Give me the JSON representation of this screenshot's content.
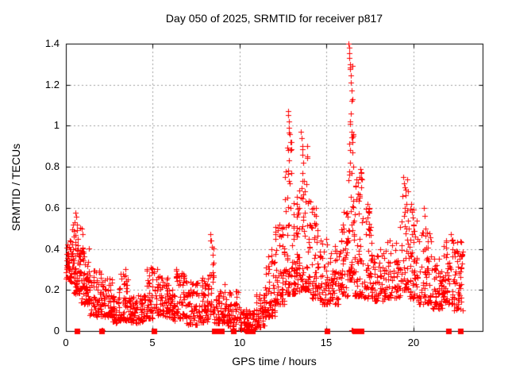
{
  "chart_data": {
    "type": "scatter",
    "title": "Day 050 of 2025, SRMTID for receiver p817",
    "xlabel": "GPS time / hours",
    "ylabel": "SRMTID / TECUs",
    "xlim": [
      0,
      24
    ],
    "ylim": [
      0,
      1.4
    ],
    "xticks": [
      {
        "v": 0,
        "label": "0"
      },
      {
        "v": 5,
        "label": "5"
      },
      {
        "v": 10,
        "label": "10"
      },
      {
        "v": 15,
        "label": "15"
      },
      {
        "v": 20,
        "label": "20"
      }
    ],
    "yticks": [
      {
        "v": 0,
        "label": "0"
      },
      {
        "v": 0.2,
        "label": "0.2"
      },
      {
        "v": 0.4,
        "label": "0.4"
      },
      {
        "v": 0.6,
        "label": "0.6"
      },
      {
        "v": 0.8,
        "label": "0.8"
      },
      {
        "v": 1,
        "label": "1"
      },
      {
        "v": 1.2,
        "label": "1.2"
      },
      {
        "v": 1.4,
        "label": "1.4"
      }
    ],
    "grid": true,
    "legend_position": "none",
    "colors": {
      "marker": "#ff0000",
      "grid": "#a0a0a0",
      "frame": "#000000",
      "background": "#ffffff"
    },
    "marker": {
      "shape": "plus",
      "size": 7
    },
    "zero_marker": {
      "shape": "filled-square",
      "size": 7
    },
    "density_bands": [
      [
        0.0,
        0.35,
        0.24,
        0.46,
        45,
        1.3
      ],
      [
        0.35,
        0.85,
        0.18,
        0.52,
        70,
        1.5
      ],
      [
        0.85,
        1.35,
        0.13,
        0.42,
        60,
        1.5
      ],
      [
        1.35,
        2.05,
        0.07,
        0.3,
        65,
        1.6
      ],
      [
        2.05,
        2.65,
        0.07,
        0.26,
        55,
        1.6
      ],
      [
        2.65,
        3.05,
        0.04,
        0.17,
        40,
        1.5
      ],
      [
        3.05,
        3.6,
        0.05,
        0.28,
        55,
        1.7
      ],
      [
        3.6,
        4.6,
        0.04,
        0.18,
        80,
        1.4
      ],
      [
        4.6,
        5.15,
        0.06,
        0.31,
        50,
        1.8
      ],
      [
        5.15,
        5.9,
        0.07,
        0.28,
        65,
        1.7
      ],
      [
        5.9,
        6.25,
        0.05,
        0.2,
        35,
        1.5
      ],
      [
        6.25,
        6.9,
        0.06,
        0.3,
        55,
        1.8
      ],
      [
        6.9,
        7.6,
        0.03,
        0.24,
        60,
        1.6
      ],
      [
        7.6,
        8.2,
        0.04,
        0.26,
        55,
        1.6
      ],
      [
        8.2,
        8.55,
        0.08,
        0.45,
        30,
        2.0
      ],
      [
        8.55,
        9.3,
        0.04,
        0.26,
        60,
        1.8
      ],
      [
        9.3,
        10.0,
        0.02,
        0.2,
        55,
        1.7
      ],
      [
        10.0,
        10.95,
        0.005,
        0.12,
        65,
        1.5
      ],
      [
        10.95,
        11.45,
        0.02,
        0.18,
        45,
        1.5
      ],
      [
        11.45,
        12.05,
        0.07,
        0.38,
        60,
        1.7
      ],
      [
        12.05,
        12.62,
        0.13,
        0.52,
        60,
        1.6
      ],
      [
        12.62,
        13.12,
        0.18,
        1.05,
        60,
        2.6
      ],
      [
        13.12,
        13.52,
        0.18,
        0.7,
        45,
        2.0
      ],
      [
        13.52,
        14.02,
        0.2,
        0.95,
        55,
        2.4
      ],
      [
        14.02,
        14.55,
        0.16,
        0.62,
        50,
        1.9
      ],
      [
        14.55,
        15.25,
        0.13,
        0.46,
        55,
        1.8
      ],
      [
        15.25,
        15.85,
        0.13,
        0.42,
        50,
        1.7
      ],
      [
        15.85,
        16.22,
        0.17,
        0.6,
        40,
        1.8
      ],
      [
        16.22,
        16.58,
        0.25,
        1.38,
        50,
        2.6
      ],
      [
        16.58,
        17.15,
        0.17,
        0.78,
        60,
        2.1
      ],
      [
        17.15,
        17.65,
        0.16,
        0.6,
        50,
        1.9
      ],
      [
        17.65,
        18.35,
        0.14,
        0.4,
        55,
        1.6
      ],
      [
        18.35,
        19.25,
        0.16,
        0.44,
        60,
        1.6
      ],
      [
        19.25,
        19.75,
        0.2,
        0.74,
        45,
        2.0
      ],
      [
        19.75,
        20.25,
        0.16,
        0.6,
        50,
        1.8
      ],
      [
        20.25,
        21.05,
        0.13,
        0.48,
        65,
        1.8
      ],
      [
        21.05,
        21.75,
        0.11,
        0.36,
        60,
        1.6
      ],
      [
        21.75,
        22.35,
        0.13,
        0.48,
        55,
        1.8
      ],
      [
        22.35,
        22.85,
        0.1,
        0.45,
        50,
        1.7
      ]
    ],
    "peak_points": [
      [
        0.5,
        0.53
      ],
      [
        0.55,
        0.575
      ],
      [
        0.58,
        0.555
      ],
      [
        0.62,
        0.52
      ],
      [
        0.9,
        0.5
      ],
      [
        0.95,
        0.47
      ],
      [
        3.3,
        0.28
      ],
      [
        3.45,
        0.3
      ],
      [
        4.95,
        0.3
      ],
      [
        5.25,
        0.3
      ],
      [
        6.35,
        0.3
      ],
      [
        6.4,
        0.28
      ],
      [
        8.33,
        0.47
      ],
      [
        8.36,
        0.44
      ],
      [
        8.4,
        0.41
      ],
      [
        8.44,
        0.37
      ],
      [
        11.85,
        0.4
      ],
      [
        12.3,
        0.52
      ],
      [
        12.45,
        0.5
      ],
      [
        12.78,
        1.07
      ],
      [
        12.8,
        1.05
      ],
      [
        12.83,
        1.02
      ],
      [
        12.86,
        0.99
      ],
      [
        12.89,
        0.96
      ],
      [
        12.92,
        0.92
      ],
      [
        12.95,
        0.88
      ],
      [
        12.85,
        0.83
      ],
      [
        12.8,
        0.78
      ],
      [
        12.9,
        0.72
      ],
      [
        12.75,
        0.65
      ],
      [
        12.95,
        0.6
      ],
      [
        13.54,
        0.97
      ],
      [
        13.57,
        0.94
      ],
      [
        13.6,
        0.9
      ],
      [
        13.63,
        0.86
      ],
      [
        13.66,
        0.82
      ],
      [
        13.6,
        0.77
      ],
      [
        13.7,
        0.73
      ],
      [
        13.75,
        0.68
      ],
      [
        13.8,
        0.63
      ],
      [
        13.3,
        0.62
      ],
      [
        13.35,
        0.57
      ],
      [
        14.1,
        0.63
      ],
      [
        14.15,
        0.58
      ],
      [
        15.0,
        0.45
      ],
      [
        15.05,
        0.42
      ],
      [
        16.28,
        1.4
      ],
      [
        16.3,
        1.38
      ],
      [
        16.32,
        1.355
      ],
      [
        16.34,
        1.33
      ],
      [
        16.36,
        1.3
      ],
      [
        16.38,
        1.275
      ],
      [
        16.4,
        1.245
      ],
      [
        16.42,
        1.21
      ],
      [
        16.44,
        1.17
      ],
      [
        16.46,
        1.12
      ],
      [
        16.42,
        1.06
      ],
      [
        16.38,
        1.01
      ],
      [
        16.44,
        0.97
      ],
      [
        16.48,
        0.92
      ],
      [
        16.5,
        0.87
      ],
      [
        16.35,
        0.82
      ],
      [
        16.45,
        0.77
      ],
      [
        16.95,
        0.79
      ],
      [
        17.0,
        0.77
      ],
      [
        17.05,
        0.74
      ],
      [
        17.0,
        0.7
      ],
      [
        17.35,
        0.62
      ],
      [
        17.4,
        0.58
      ],
      [
        19.45,
        0.75
      ],
      [
        19.48,
        0.72
      ],
      [
        19.52,
        0.7
      ],
      [
        19.56,
        0.66
      ],
      [
        19.6,
        0.62
      ],
      [
        19.5,
        0.58
      ],
      [
        19.9,
        0.62
      ],
      [
        19.95,
        0.58
      ],
      [
        20.6,
        0.6
      ],
      [
        20.65,
        0.56
      ],
      [
        20.7,
        0.5
      ],
      [
        22.15,
        0.47
      ],
      [
        22.2,
        0.44
      ],
      [
        22.25,
        0.4
      ]
    ],
    "zero_square_x": [
      0.62,
      2.06,
      5.08,
      8.57,
      8.68,
      8.82,
      8.95,
      9.64,
      10.47,
      10.62,
      10.74,
      15.03,
      16.62,
      16.92,
      17.02,
      22.04,
      22.72
    ],
    "near_zero_plus_x": [
      2.04,
      2.1,
      9.62,
      9.7,
      9.78,
      10.3,
      16.45,
      16.5
    ]
  }
}
